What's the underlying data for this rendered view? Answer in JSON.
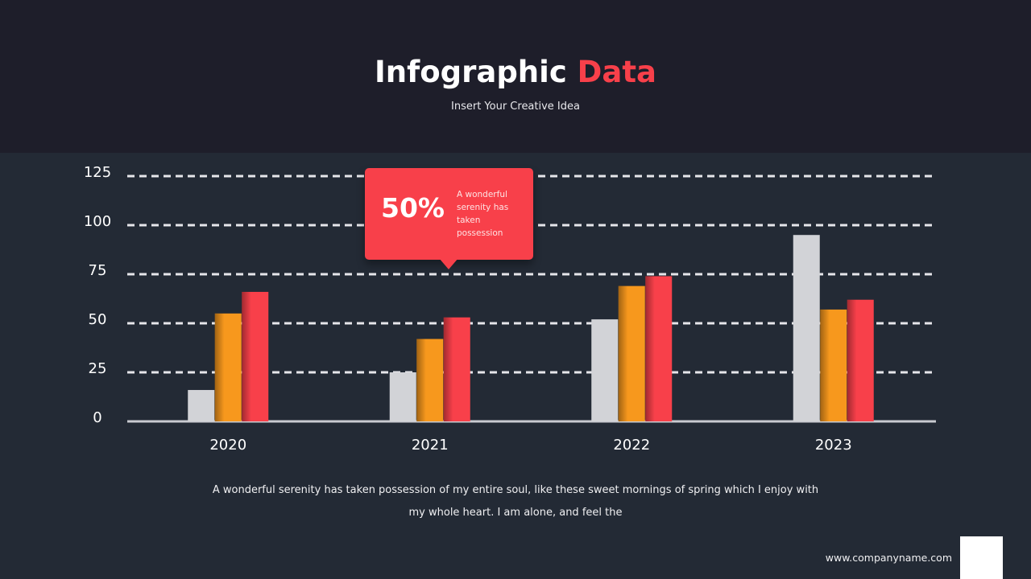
{
  "header": {
    "title_main": "Infographic",
    "title_accent": "Data",
    "subtitle": "Insert Your Creative Idea"
  },
  "chart_data": {
    "type": "bar",
    "categories": [
      "2020",
      "2021",
      "2022",
      "2023"
    ],
    "series": [
      {
        "color": "#d2d3d7",
        "values": [
          16,
          25,
          52,
          95
        ]
      },
      {
        "color": "#f7981d",
        "values": [
          55,
          42,
          69,
          57
        ]
      },
      {
        "color": "#f8404a",
        "values": [
          66,
          53,
          74,
          62
        ]
      }
    ],
    "ylim": [
      0,
      125
    ],
    "yticks": [
      0,
      25,
      50,
      75,
      100,
      125
    ],
    "grid": true,
    "annotation": {
      "label": "50%",
      "text": "A wonderful serenity has taken possession"
    }
  },
  "body_text": "A wonderful serenity has taken possession of my entire soul, like these sweet mornings of spring which I enjoy with my whole heart. I am alone, and feel the",
  "footer": {
    "url": "www.companyname.com"
  }
}
